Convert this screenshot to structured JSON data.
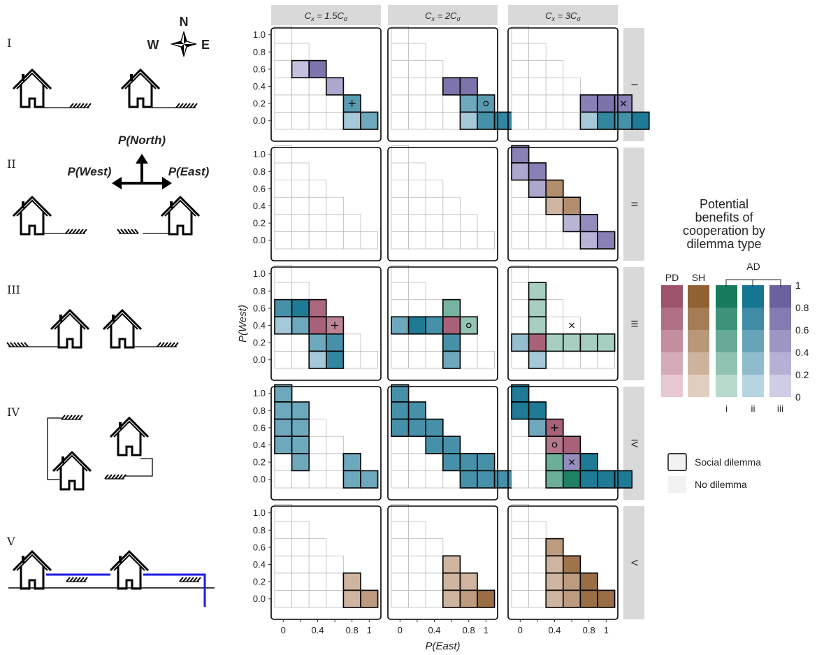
{
  "chart_data": {
    "type": "heatmap",
    "column_strips": [
      {
        "pre": "C",
        "sub": "x",
        "mid": " = 1.5C",
        "sub2": "σ"
      },
      {
        "pre": "C",
        "sub": "x",
        "mid": " = 2C",
        "sub2": "σ"
      },
      {
        "pre": "C",
        "sub": "x",
        "mid": " = 3C",
        "sub2": "σ"
      }
    ],
    "row_strips": [
      "I",
      "II",
      "III",
      "IV",
      "V"
    ],
    "xlabel": "P(East)",
    "ylabel": "P(West)",
    "x_ticks": [
      "0",
      "0.4",
      "0.8",
      "1"
    ],
    "y_ticks": [
      "0.0",
      "0.2",
      "0.4",
      "0.6",
      "0.8",
      "1.0"
    ],
    "grid_values": [
      0,
      0.2,
      0.4,
      0.6,
      0.8,
      1.0
    ],
    "panels": [
      [
        {
          "cells": [
            [
              1,
              3,
              "AD-iii",
              0.2
            ],
            [
              2,
              3,
              "AD-iii",
              0.8
            ],
            [
              3,
              2,
              "AD-iii",
              0.4
            ],
            [
              4,
              1,
              "AD-ii",
              0.6
            ],
            [
              4,
              0,
              "AD-ii",
              0.2
            ],
            [
              5,
              0,
              "AD-ii",
              0.5
            ]
          ],
          "markers": [
            [
              4,
              1,
              "+"
            ]
          ]
        },
        {
          "cells": [
            [
              3,
              2,
              "AD-iii",
              0.8
            ],
            [
              4,
              2,
              "AD-iii",
              0.8
            ],
            [
              4,
              1,
              "AD-ii",
              0.5
            ],
            [
              5,
              1,
              "AD-ii",
              0.6
            ],
            [
              4,
              0,
              "AD-ii",
              0.2
            ],
            [
              5,
              0,
              "AD-ii",
              0.7
            ],
            [
              6,
              0,
              "AD-ii",
              0.8
            ]
          ],
          "markers": [
            [
              5,
              1,
              "o"
            ]
          ]
        },
        {
          "cells": [
            [
              4,
              1,
              "AD-iii",
              0.7
            ],
            [
              5,
              1,
              "AD-iii",
              0.8
            ],
            [
              6,
              1,
              "AD-iii",
              0.7
            ],
            [
              4,
              0,
              "AD-ii",
              0.2
            ],
            [
              5,
              0,
              "AD-ii",
              0.8
            ],
            [
              6,
              0,
              "AD-ii",
              0.7
            ],
            [
              7,
              0,
              "AD-ii",
              0.9
            ]
          ],
          "markers": [
            [
              6,
              1,
              "x"
            ]
          ]
        }
      ],
      [
        {
          "cells": [],
          "markers": []
        },
        {
          "cells": [],
          "markers": []
        },
        {
          "cells": [
            [
              0,
              5,
              "AD-iii",
              0.7
            ],
            [
              0,
              4,
              "AD-iii",
              0.4
            ],
            [
              1,
              4,
              "AD-iii",
              0.7
            ],
            [
              1,
              3,
              "AD-iii",
              0.4
            ],
            [
              2,
              3,
              "SH",
              0.6
            ],
            [
              2,
              2,
              "SH",
              0.3
            ],
            [
              3,
              2,
              "SH",
              0.6
            ],
            [
              3,
              1,
              "AD-iii",
              0.3
            ],
            [
              4,
              1,
              "AD-iii",
              0.6
            ],
            [
              4,
              0,
              "AD-iii",
              0.3
            ],
            [
              5,
              0,
              "AD-iii",
              0.7
            ]
          ],
          "markers": []
        }
      ],
      [
        {
          "cells": [
            [
              0,
              3,
              "AD-ii",
              0.7
            ],
            [
              1,
              3,
              "AD-ii",
              0.9
            ],
            [
              2,
              3,
              "PD",
              0.8
            ],
            [
              0,
              2,
              "AD-ii",
              0.2
            ],
            [
              1,
              2,
              "AD-ii",
              0.5
            ],
            [
              2,
              2,
              "PD",
              0.85
            ],
            [
              3,
              2,
              "PD",
              0.6
            ],
            [
              2,
              1,
              "AD-ii",
              0.5
            ],
            [
              3,
              1,
              "AD-ii",
              0.7
            ],
            [
              2,
              0,
              "AD-ii",
              0.2
            ],
            [
              3,
              0,
              "AD-ii",
              0.8
            ]
          ],
          "markers": [
            [
              3,
              2,
              "+"
            ]
          ]
        },
        {
          "cells": [
            [
              3,
              3,
              "AD-i",
              0.45
            ],
            [
              0,
              2,
              "AD-ii",
              0.5
            ],
            [
              1,
              2,
              "AD-ii",
              0.9
            ],
            [
              2,
              2,
              "AD-ii",
              0.7
            ],
            [
              3,
              2,
              "PD",
              0.85
            ],
            [
              4,
              2,
              "AD-i",
              0.3
            ],
            [
              3,
              1,
              "AD-ii",
              0.7
            ],
            [
              3,
              0,
              "AD-ii",
              0.5
            ]
          ],
          "markers": [
            [
              4,
              2,
              "o"
            ]
          ]
        },
        {
          "cells": [
            [
              1,
              4,
              "AD-i",
              0.2
            ],
            [
              1,
              3,
              "AD-i",
              0.2
            ],
            [
              1,
              2,
              "AD-i",
              0.2
            ],
            [
              0,
              1,
              "AD-ii",
              0.3
            ],
            [
              1,
              1,
              "PD",
              0.85
            ],
            [
              2,
              1,
              "AD-i",
              0.2
            ],
            [
              3,
              1,
              "AD-i",
              0.2
            ],
            [
              4,
              1,
              "AD-i",
              0.2
            ],
            [
              5,
              1,
              "AD-i",
              0.2
            ],
            [
              1,
              0,
              "AD-ii",
              0.2
            ]
          ],
          "markers": [
            [
              3,
              2,
              "x"
            ]
          ]
        }
      ],
      [
        {
          "cells": [
            [
              0,
              5,
              "AD-ii",
              0.5
            ],
            [
              0,
              4,
              "AD-ii",
              0.5
            ],
            [
              1,
              4,
              "AD-ii",
              0.5
            ],
            [
              0,
              3,
              "AD-ii",
              0.5
            ],
            [
              1,
              3,
              "AD-ii",
              0.5
            ],
            [
              0,
              2,
              "AD-ii",
              0.5
            ],
            [
              1,
              2,
              "AD-ii",
              0.5
            ],
            [
              1,
              1,
              "AD-ii",
              0.5
            ],
            [
              4,
              1,
              "AD-ii",
              0.5
            ],
            [
              4,
              0,
              "AD-ii",
              0.5
            ],
            [
              5,
              0,
              "AD-ii",
              0.5
            ]
          ],
          "markers": []
        },
        {
          "cells": [
            [
              0,
              5,
              "AD-ii",
              0.7
            ],
            [
              0,
              4,
              "AD-ii",
              0.7
            ],
            [
              1,
              4,
              "AD-ii",
              0.7
            ],
            [
              0,
              3,
              "AD-ii",
              0.7
            ],
            [
              1,
              3,
              "AD-ii",
              0.7
            ],
            [
              2,
              3,
              "AD-ii",
              0.7
            ],
            [
              2,
              2,
              "AD-ii",
              0.7
            ],
            [
              3,
              2,
              "AD-ii",
              0.7
            ],
            [
              3,
              1,
              "AD-ii",
              0.7
            ],
            [
              4,
              1,
              "AD-ii",
              0.7
            ],
            [
              5,
              1,
              "AD-ii",
              0.7
            ],
            [
              4,
              0,
              "AD-ii",
              0.7
            ],
            [
              5,
              0,
              "AD-ii",
              0.7
            ],
            [
              6,
              0,
              "AD-ii",
              0.7
            ]
          ],
          "markers": []
        },
        {
          "cells": [
            [
              0,
              5,
              "AD-ii",
              0.9
            ],
            [
              0,
              4,
              "AD-ii",
              0.9
            ],
            [
              1,
              4,
              "AD-ii",
              0.9
            ],
            [
              1,
              3,
              "AD-ii",
              0.5
            ],
            [
              2,
              3,
              "PD",
              0.85
            ],
            [
              2,
              2,
              "PD",
              0.7
            ],
            [
              3,
              2,
              "PD",
              0.85
            ],
            [
              2,
              1,
              "AD-i",
              0.5
            ],
            [
              3,
              1,
              "AD-iii",
              0.6
            ],
            [
              4,
              1,
              "AD-ii",
              0.9
            ],
            [
              2,
              0,
              "AD-i",
              0.5
            ],
            [
              3,
              0,
              "AD-i",
              0.9
            ],
            [
              4,
              0,
              "AD-ii",
              0.9
            ],
            [
              5,
              0,
              "AD-ii",
              0.9
            ],
            [
              6,
              0,
              "AD-ii",
              0.9
            ]
          ],
          "markers": [
            [
              2,
              3,
              "+"
            ],
            [
              2,
              2,
              "o"
            ],
            [
              3,
              1,
              "x"
            ]
          ]
        }
      ],
      [
        {
          "cells": [
            [
              4,
              1,
              "SH",
              0.3
            ],
            [
              4,
              0,
              "SH",
              0.3
            ],
            [
              5,
              0,
              "SH",
              0.5
            ]
          ],
          "markers": []
        },
        {
          "cells": [
            [
              3,
              2,
              "SH",
              0.3
            ],
            [
              3,
              1,
              "SH",
              0.3
            ],
            [
              4,
              1,
              "SH",
              0.3
            ],
            [
              3,
              0,
              "SH",
              0.3
            ],
            [
              4,
              0,
              "SH",
              0.5
            ],
            [
              5,
              0,
              "SH",
              0.85
            ]
          ],
          "markers": []
        },
        {
          "cells": [
            [
              2,
              3,
              "SH",
              0.5
            ],
            [
              2,
              2,
              "SH",
              0.3
            ],
            [
              3,
              2,
              "SH",
              0.8
            ],
            [
              2,
              1,
              "SH",
              0.3
            ],
            [
              3,
              1,
              "SH",
              0.5
            ],
            [
              4,
              1,
              "SH",
              0.85
            ],
            [
              2,
              0,
              "SH",
              0.3
            ],
            [
              3,
              0,
              "SH",
              0.5
            ],
            [
              4,
              0,
              "SH",
              0.85
            ],
            [
              5,
              0,
              "SH",
              0.85
            ]
          ],
          "markers": []
        }
      ]
    ],
    "legend": {
      "title": "Potential\nbenefits of\ncooperation by\ndilemma type",
      "columns": [
        "PD",
        "SH",
        "i",
        "ii",
        "iii"
      ],
      "group_label": "AD",
      "scale_ticks": [
        "1",
        "0.8",
        "0.6",
        "0.4",
        "0.2",
        "0"
      ],
      "box_items": [
        "Social dilemma",
        "No dilemma"
      ]
    },
    "colors": {
      "PD": [
        "#f1d7df",
        "#9a4c66"
      ],
      "SH": [
        "#ecdcd2",
        "#8b5a2b"
      ],
      "AD-i": [
        "#cde6dc",
        "#0c7556"
      ],
      "AD-ii": [
        "#cde0ec",
        "#0c6f8c"
      ],
      "AD-iii": [
        "#dcdaee",
        "#655a9c"
      ],
      "strip": "#d9d9d9",
      "pipe": "#1a1ae6"
    }
  },
  "schematic": {
    "row_labels": [
      "I",
      "II",
      "III",
      "IV",
      "V"
    ],
    "compass": {
      "n": "N",
      "w": "W",
      "e": "E"
    },
    "p_north": "P(North)",
    "p_west": "P(West)",
    "p_east": "P(East)"
  }
}
